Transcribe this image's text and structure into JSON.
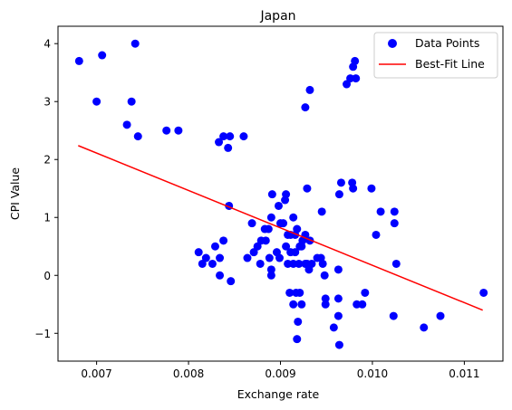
{
  "chart_data": {
    "type": "scatter",
    "title": "Japan",
    "xlabel": "Exchange rate",
    "ylabel": "CPI Value",
    "xlim": [
      0.00658,
      0.01142
    ],
    "ylim": [
      -1.48,
      4.3
    ],
    "x_ticks": [
      0.007,
      0.008,
      0.009,
      0.01,
      0.011
    ],
    "x_tick_labels": [
      "0.007",
      "0.008",
      "0.009",
      "0.010",
      "0.011"
    ],
    "y_ticks": [
      -1,
      0,
      1,
      2,
      3,
      4
    ],
    "y_tick_labels": [
      "−1",
      "0",
      "1",
      "2",
      "3",
      "4"
    ],
    "grid": false,
    "legend": {
      "position": "top-right",
      "entries": [
        {
          "label": "Data Points",
          "marker": "circle",
          "color": "#0000ff"
        },
        {
          "label": "Best-Fit Line",
          "marker": "line",
          "color": "#ff0000"
        }
      ]
    },
    "series": [
      {
        "name": "Data Points",
        "kind": "scatter",
        "color": "#0000ff",
        "points": [
          [
            0.00681,
            3.7
          ],
          [
            0.00706,
            3.8
          ],
          [
            0.00742,
            4.0
          ],
          [
            0.007,
            3.0
          ],
          [
            0.00738,
            3.0
          ],
          [
            0.00733,
            2.6
          ],
          [
            0.00745,
            2.4
          ],
          [
            0.00776,
            2.5
          ],
          [
            0.00789,
            2.5
          ],
          [
            0.00833,
            2.3
          ],
          [
            0.00838,
            2.4
          ],
          [
            0.00845,
            2.4
          ],
          [
            0.00843,
            2.2
          ],
          [
            0.0086,
            2.4
          ],
          [
            0.00927,
            2.9
          ],
          [
            0.00932,
            3.2
          ],
          [
            0.00972,
            3.3
          ],
          [
            0.00976,
            3.4
          ],
          [
            0.00979,
            3.6
          ],
          [
            0.00981,
            3.7
          ],
          [
            0.00982,
            3.4
          ],
          [
            0.00844,
            1.2
          ],
          [
            0.00869,
            0.9
          ],
          [
            0.00875,
            0.5
          ],
          [
            0.00879,
            0.6
          ],
          [
            0.00883,
            0.8
          ],
          [
            0.00887,
            0.8
          ],
          [
            0.0089,
            1.0
          ],
          [
            0.00891,
            1.4
          ],
          [
            0.00898,
            1.2
          ],
          [
            0.009,
            0.9
          ],
          [
            0.00903,
            0.9
          ],
          [
            0.00905,
            1.3
          ],
          [
            0.00906,
            1.4
          ],
          [
            0.00908,
            0.7
          ],
          [
            0.00911,
            0.7
          ],
          [
            0.00914,
            1.0
          ],
          [
            0.00916,
            0.7
          ],
          [
            0.00918,
            0.8
          ],
          [
            0.00921,
            0.5
          ],
          [
            0.00924,
            0.6
          ],
          [
            0.00927,
            0.7
          ],
          [
            0.00929,
            1.5
          ],
          [
            0.00932,
            0.6
          ],
          [
            0.00945,
            1.1
          ],
          [
            0.00964,
            1.4
          ],
          [
            0.00966,
            1.6
          ],
          [
            0.00978,
            1.6
          ],
          [
            0.00979,
            1.5
          ],
          [
            0.00999,
            1.5
          ],
          [
            0.01009,
            1.1
          ],
          [
            0.01024,
            1.1
          ],
          [
            0.01024,
            0.9
          ],
          [
            0.01004,
            0.7
          ],
          [
            0.01026,
            0.2
          ],
          [
            0.00811,
            0.4
          ],
          [
            0.00815,
            0.2
          ],
          [
            0.00819,
            0.3
          ],
          [
            0.00826,
            0.2
          ],
          [
            0.00829,
            0.5
          ],
          [
            0.00834,
            0.3
          ],
          [
            0.00838,
            0.6
          ],
          [
            0.00834,
            0.0
          ],
          [
            0.00846,
            -0.1
          ],
          [
            0.00864,
            0.3
          ],
          [
            0.00871,
            0.4
          ],
          [
            0.00878,
            0.2
          ],
          [
            0.00884,
            0.6
          ],
          [
            0.00888,
            0.3
          ],
          [
            0.0089,
            0.1
          ],
          [
            0.0089,
            0.0
          ],
          [
            0.00896,
            0.4
          ],
          [
            0.00899,
            0.3
          ],
          [
            0.00906,
            0.5
          ],
          [
            0.00908,
            0.2
          ],
          [
            0.00911,
            0.4
          ],
          [
            0.00914,
            0.2
          ],
          [
            0.00916,
            0.4
          ],
          [
            0.0092,
            0.2
          ],
          [
            0.00923,
            0.5
          ],
          [
            0.00927,
            0.2
          ],
          [
            0.00929,
            0.2
          ],
          [
            0.00931,
            0.1
          ],
          [
            0.00934,
            0.2
          ],
          [
            0.0094,
            0.3
          ],
          [
            0.00944,
            0.3
          ],
          [
            0.00946,
            0.2
          ],
          [
            0.00948,
            0.0
          ],
          [
            0.00963,
            0.1
          ],
          [
            0.0091,
            -0.3
          ],
          [
            0.00914,
            -0.5
          ],
          [
            0.00917,
            -0.3
          ],
          [
            0.00919,
            -0.8
          ],
          [
            0.00921,
            -0.3
          ],
          [
            0.00923,
            -0.5
          ],
          [
            0.00918,
            -1.1
          ],
          [
            0.00949,
            -0.4
          ],
          [
            0.00949,
            -0.5
          ],
          [
            0.00958,
            -0.9
          ],
          [
            0.00963,
            -0.7
          ],
          [
            0.00963,
            -0.4
          ],
          [
            0.00964,
            -1.2
          ],
          [
            0.00983,
            -0.5
          ],
          [
            0.00989,
            -0.5
          ],
          [
            0.00992,
            -0.3
          ],
          [
            0.01023,
            -0.7
          ],
          [
            0.01056,
            -0.9
          ],
          [
            0.01074,
            -0.7
          ],
          [
            0.01121,
            -0.3
          ]
        ]
      },
      {
        "name": "Best-Fit Line",
        "kind": "line",
        "color": "#ff0000",
        "points": [
          [
            0.0068,
            2.24
          ],
          [
            0.0112,
            -0.6
          ]
        ]
      }
    ]
  }
}
